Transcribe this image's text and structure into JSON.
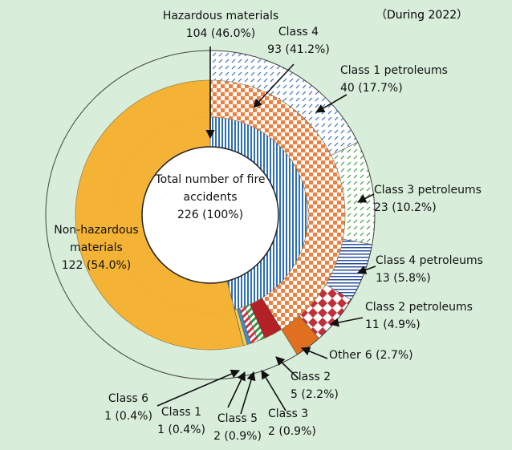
{
  "chart_data": {
    "type": "sunburst",
    "title": "（During 2022）",
    "center": {
      "name": "Total number of fire accidents",
      "value": 226,
      "value_label": "226 (100%)"
    },
    "segments": [
      {
        "name": "Hazardous materials",
        "value": 104,
        "value_label": "104 (46.0%)",
        "color": "#2e6fb7",
        "children": [
          {
            "name": "Class 4",
            "value": 93,
            "value_label": "93 (41.2%)",
            "color": "#ef8040",
            "children": [
              {
                "name": "Class 1 petroleums",
                "value": 40,
                "value_label": "40 (17.7%)",
                "color": "#3b6fc0"
              },
              {
                "name": "Class 3 petroleums",
                "value": 23,
                "value_label": "23 (10.2%)",
                "color": "#3f9b3a"
              },
              {
                "name": "Class 4 petroleums",
                "value": 13,
                "value_label": "13 (5.8%)",
                "color": "#2a4f9e"
              },
              {
                "name": "Class 2 petroleums",
                "value": 11,
                "value_label": "11 (4.9%)",
                "color": "#c0303a"
              },
              {
                "name": "Other",
                "value": 6,
                "value_label": "6 (2.7%)",
                "color": "#e07020"
              }
            ]
          },
          {
            "name": "Class 2",
            "value": 5,
            "value_label": "5 (2.2%)",
            "color": "#b32025"
          },
          {
            "name": "Class 3",
            "value": 2,
            "value_label": "2 (0.9%)",
            "color": "#2f9a3a"
          },
          {
            "name": "Class 5",
            "value": 2,
            "value_label": "2 (0.9%)",
            "color": "#d0303a"
          },
          {
            "name": "Class 1",
            "value": 1,
            "value_label": "1 (0.4%)",
            "color": "#3a8fd0"
          },
          {
            "name": "Class 6",
            "value": 1,
            "value_label": "1 (0.4%)",
            "color": "#f2cf5a"
          }
        ]
      },
      {
        "name": "Non-hazardous materials",
        "value": 122,
        "value_label": "122 (54.0%)",
        "color": "#f5b335"
      }
    ]
  }
}
